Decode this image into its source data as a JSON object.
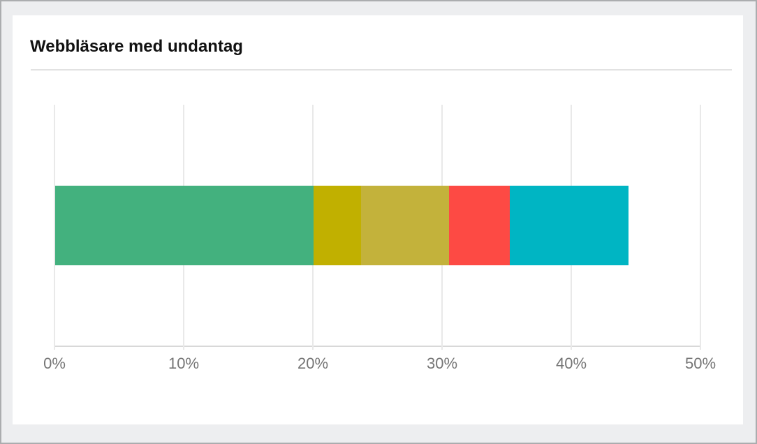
{
  "page": {
    "background_color": "#edeef0",
    "frame_border_color": "#abadaf",
    "card_background": "#ffffff"
  },
  "card": {
    "title": "Webbläsare med undantag"
  },
  "chart_data": {
    "type": "bar",
    "orientation": "horizontal",
    "stacked": true,
    "title": "Webbläsare med undantag",
    "xlabel": "",
    "ylabel": "",
    "xlim": [
      0,
      50
    ],
    "grid": true,
    "legend": "none",
    "x_tick_labels": [
      "0%",
      "10%",
      "20%",
      "30%",
      "40%",
      "50%"
    ],
    "x_tick_values": [
      0,
      10,
      20,
      30,
      40,
      50
    ],
    "series": [
      {
        "value": 20.0,
        "color": "#43b17e"
      },
      {
        "value": 3.7,
        "color": "#c1b000"
      },
      {
        "value": 6.8,
        "color": "#c3b23b"
      },
      {
        "value": 4.7,
        "color": "#fd4a44"
      },
      {
        "value": 9.2,
        "color": "#00b5c3"
      }
    ],
    "total_percent": 44.4,
    "colors": {
      "gridline": "#e9e9e9",
      "axis_line": "#d8d8d8",
      "tick_label": "#757575"
    }
  }
}
